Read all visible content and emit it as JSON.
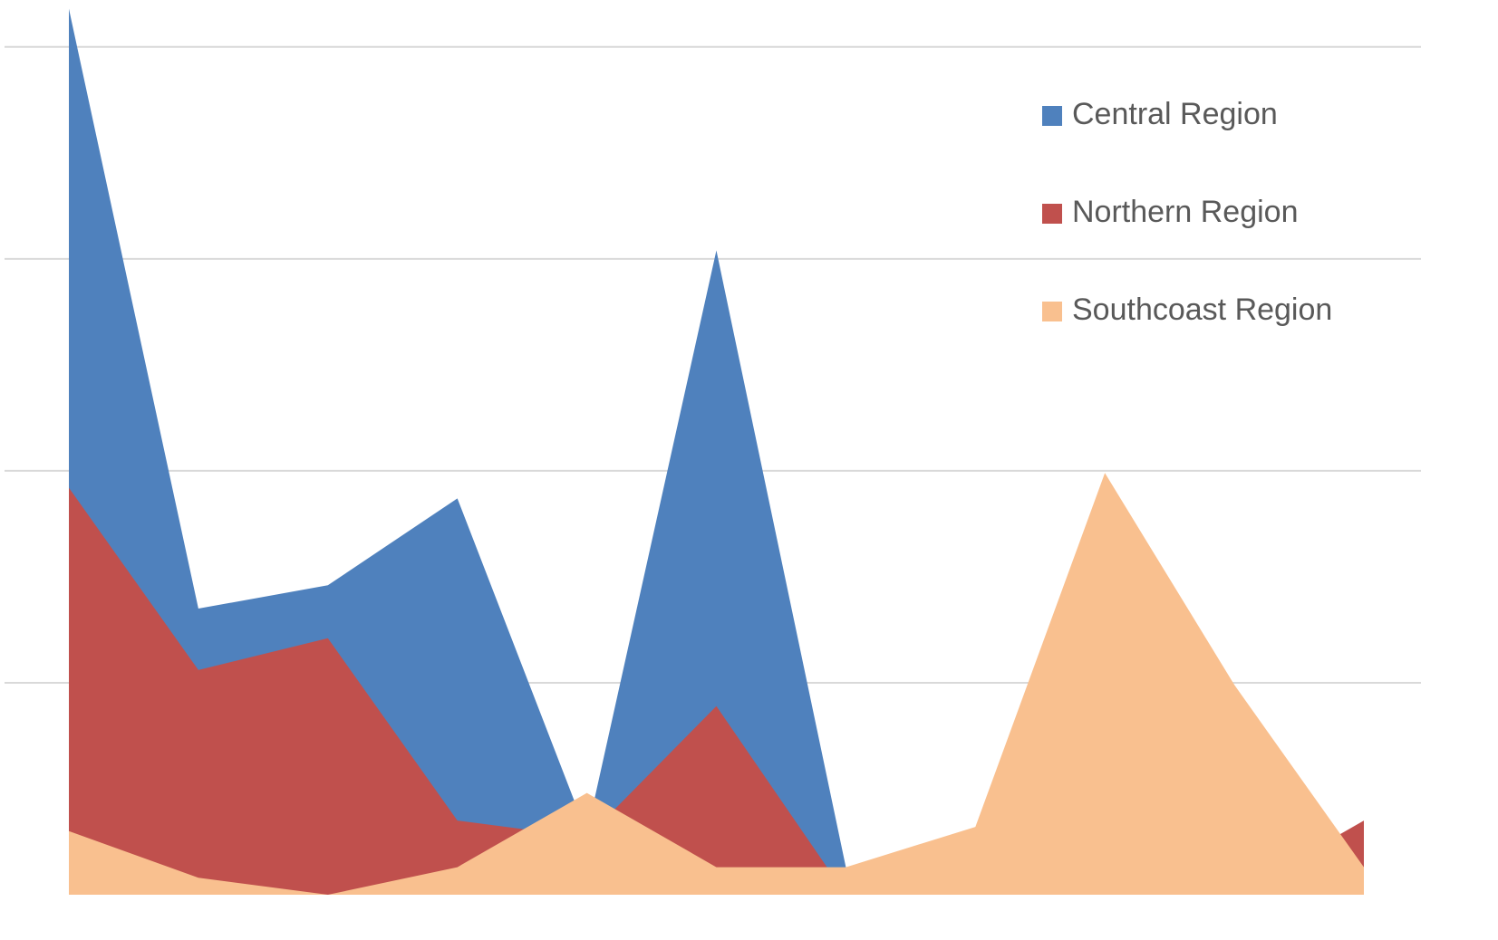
{
  "chart_data": {
    "type": "area",
    "categories": [
      null,
      null,
      null,
      null,
      null,
      null,
      null,
      null,
      null,
      null,
      null
    ],
    "series": [
      {
        "name": "Central Region",
        "color": "#4f81bd",
        "values": [
          4.18,
          1.35,
          1.46,
          1.87,
          0.29,
          3.04,
          0.13,
          0,
          0,
          0,
          0
        ]
      },
      {
        "name": "Northern Region",
        "color": "#c0504d",
        "values": [
          1.92,
          1.06,
          1.21,
          0.35,
          0.27,
          0.89,
          0,
          0,
          0,
          0,
          0.35
        ]
      },
      {
        "name": "Southcoast Region",
        "color": "#f9c08f",
        "values": [
          0.3,
          0.08,
          0,
          0.13,
          0.48,
          0.13,
          0.13,
          0.32,
          1.99,
          0.99,
          0.13
        ]
      }
    ],
    "ylim": [
      0,
      4.2
    ],
    "yticks": [
      1,
      2,
      3,
      4
    ],
    "grid": true,
    "legend": "right"
  }
}
